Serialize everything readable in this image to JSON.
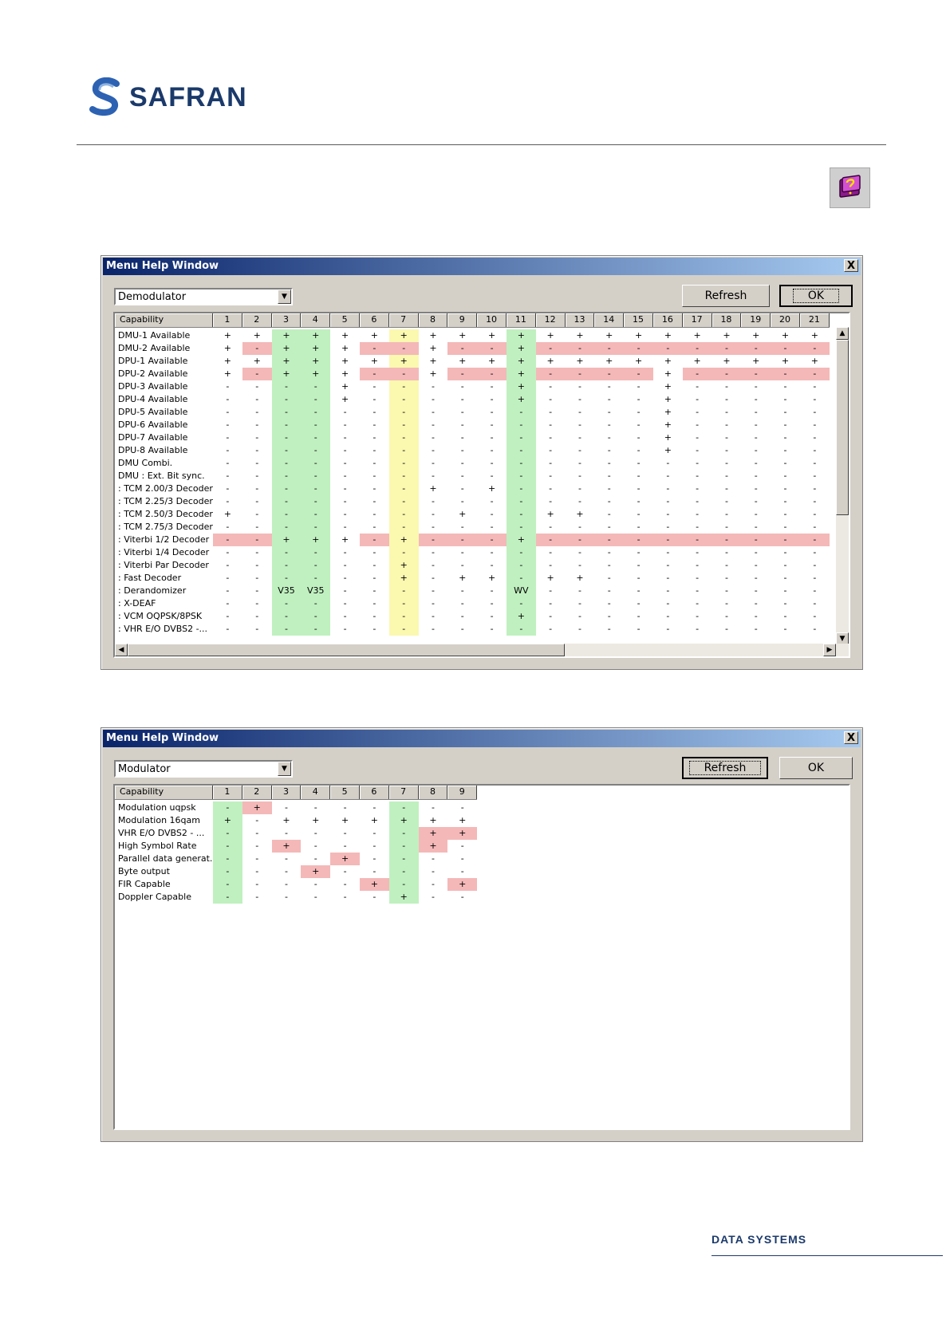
{
  "brand": {
    "name": "SAFRAN",
    "footer": "DATA SYSTEMS",
    "help_icon": "help-book-icon"
  },
  "colors": {
    "red": "#f4b8b8",
    "green": "#c0f0c0",
    "yellow": "#fbf8b0",
    "title_start": "#0a246a",
    "title_end": "#a6caf0"
  },
  "dialogs": [
    {
      "title": "Menu Help Window",
      "close_label": "X",
      "combo_value": "Demodulator",
      "refresh_label": "Refresh",
      "ok_label": "OK",
      "columns": [
        "Capability",
        "1",
        "2",
        "3",
        "4",
        "5",
        "6",
        "7",
        "8",
        "9",
        "10",
        "11",
        "12",
        "13",
        "14",
        "15",
        "16",
        "17",
        "18",
        "19",
        "20",
        "21"
      ],
      "column_colors": {
        "3": "g",
        "4": "g",
        "7": "y",
        "11": "g"
      },
      "rows": [
        {
          "label": "DMU-1 Available",
          "values": "+ + + + + + + + + + + + + + + + + + + + +"
        },
        {
          "label": "DMU-2 Available",
          "values": "+ - + + + - - + - - + - - - - - - - - - -",
          "red": [
            2,
            6,
            7,
            9,
            10,
            12,
            13,
            14,
            15,
            16,
            17,
            18,
            19,
            20,
            21
          ]
        },
        {
          "label": "DPU-1 Available",
          "values": "+ + + + + + + + + + + + + + + + + + + + +"
        },
        {
          "label": "DPU-2 Available",
          "values": "+ - + + + - - + - - + - - - - + - - - - -",
          "red": [
            2,
            6,
            7,
            9,
            10,
            12,
            13,
            14,
            15,
            17,
            18,
            19,
            20,
            21
          ]
        },
        {
          "label": "DPU-3 Available",
          "values": "- - - - + - - - - - + - - - - + - - - - -"
        },
        {
          "label": "DPU-4 Available",
          "values": "- - - - + - - - - - + - - - - + - - - - -"
        },
        {
          "label": "DPU-5 Available",
          "values": "- - - - - - - - - - - - - - - + - - - - -"
        },
        {
          "label": "DPU-6 Available",
          "values": "- - - - - - - - - - - - - - - + - - - - -"
        },
        {
          "label": "DPU-7 Available",
          "values": "- - - - - - - - - - - - - - - + - - - - -"
        },
        {
          "label": "DPU-8 Available",
          "values": "- - - - - - - - - - - - - - - + - - - - -"
        },
        {
          "label": "DMU Combi.",
          "values": "- - - - - - - - - - - - - - - - - - - - -"
        },
        {
          "label": "DMU : Ext. Bit sync.",
          "values": "- - - - - - - - - - - - - - - - - - - - -"
        },
        {
          "label": ": TCM 2.00/3 Decoder",
          "values": "- - - - - - - + - + - - - - - - - - - - -"
        },
        {
          "label": ": TCM 2.25/3 Decoder",
          "values": "- - - - - - - - - - - - - - - - - - - - -"
        },
        {
          "label": ": TCM 2.50/3 Decoder",
          "values": "+ - - - - - - - + - - + + - - - - - - - -"
        },
        {
          "label": ": TCM 2.75/3 Decoder",
          "values": "- - - - - - - - - - - - - - - - - - - - -"
        },
        {
          "label": ": Viterbi 1/2 Decoder",
          "values": "- - + + + - + - - - + - - - - - - - - - -",
          "red": [
            1,
            2,
            6,
            8,
            9,
            10,
            12,
            13,
            14,
            15,
            16,
            17,
            18,
            19,
            20,
            21
          ]
        },
        {
          "label": ": Viterbi 1/4 Decoder",
          "values": "- - - - - - - - - - - - - - - - - - - - -"
        },
        {
          "label": ": Viterbi Par Decoder",
          "values": "- - - - - - + - - - - - - - - - - - - - -"
        },
        {
          "label": ": Fast Decoder",
          "values": "- - - - - - + - + + - + + - - - - - - - -"
        },
        {
          "label": ": Derandomizer",
          "values": "- - V35 V35 - - - - - - WV - - - - - - - - - -"
        },
        {
          "label": ": X-DEAF",
          "values": "- - - - - - - - - - - - - - - - - - - - -"
        },
        {
          "label": ": VCM OQPSK/8PSK",
          "values": "- - - - - - - - - - + - - - - - - - - - -"
        },
        {
          "label": ": VHR E/O DVBS2 -...",
          "values": "- - - - - - - - - - - - - - - - - - - - -"
        }
      ]
    },
    {
      "title": "Menu Help Window",
      "close_label": "X",
      "combo_value": "Modulator",
      "refresh_label": "Refresh",
      "ok_label": "OK",
      "columns": [
        "Capability",
        "1",
        "2",
        "3",
        "4",
        "5",
        "6",
        "7",
        "8",
        "9"
      ],
      "column_colors": {
        "1": "g",
        "7": "g"
      },
      "rows": [
        {
          "label": "Modulation uqpsk",
          "values": "- + - - - - - - -",
          "red": [
            2
          ]
        },
        {
          "label": "Modulation 16qam",
          "values": "+ - + + + + + + +"
        },
        {
          "label": "VHR E/O DVBS2 - ...",
          "values": "- - - - - - - + +",
          "red": [
            8,
            9
          ]
        },
        {
          "label": "High Symbol Rate",
          "values": "- - + - - - - + -",
          "red": [
            3,
            8
          ]
        },
        {
          "label": "Parallel data generat...",
          "values": "- - - - + - - - -",
          "red": [
            5
          ]
        },
        {
          "label": "Byte output",
          "values": "- - - + - - - - -",
          "red": [
            4
          ]
        },
        {
          "label": "FIR Capable",
          "values": "- - - - - + - - +",
          "red": [
            6,
            9
          ]
        },
        {
          "label": "Doppler Capable",
          "values": "- - - - - - + - -"
        }
      ]
    }
  ]
}
